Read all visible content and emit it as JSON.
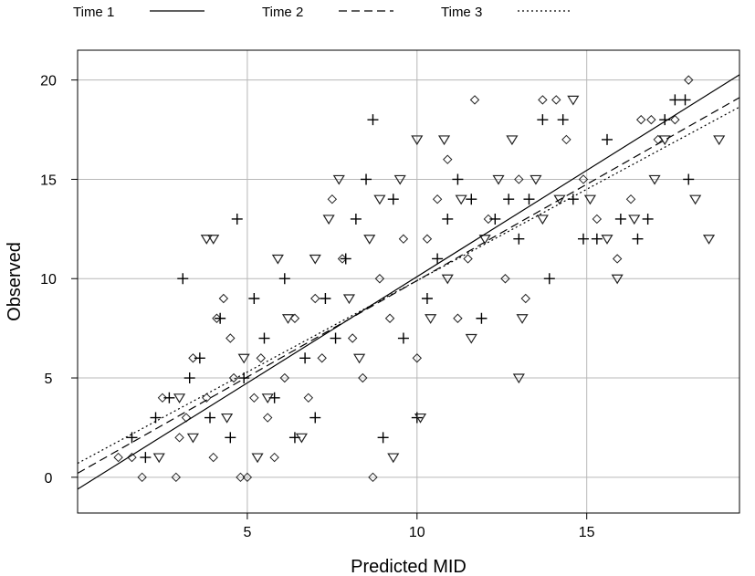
{
  "chart_data": {
    "type": "scatter",
    "xlabel": "Predicted MID",
    "ylabel": "Observed",
    "xlim": [
      0,
      19.5
    ],
    "ylim": [
      -1.8,
      21.5
    ],
    "x_ticks": [
      5,
      10,
      15
    ],
    "y_ticks": [
      0,
      5,
      10,
      15,
      20
    ],
    "grid": true,
    "legend_position": "top",
    "series": [
      {
        "name": "Time 1",
        "marker": "diamond",
        "line": "solid",
        "fit": {
          "intercept": -0.6,
          "slope": 1.07
        },
        "points": [
          [
            1.2,
            1
          ],
          [
            1.6,
            1
          ],
          [
            1.9,
            0
          ],
          [
            2.9,
            0
          ],
          [
            2.5,
            4
          ],
          [
            3.0,
            2
          ],
          [
            3.2,
            3
          ],
          [
            3.4,
            6
          ],
          [
            3.8,
            4
          ],
          [
            4.0,
            1
          ],
          [
            4.1,
            8
          ],
          [
            4.3,
            9
          ],
          [
            4.5,
            7
          ],
          [
            4.6,
            5
          ],
          [
            4.8,
            0
          ],
          [
            5.0,
            0
          ],
          [
            5.2,
            4
          ],
          [
            5.4,
            6
          ],
          [
            5.6,
            3
          ],
          [
            5.8,
            1
          ],
          [
            6.1,
            5
          ],
          [
            6.4,
            8
          ],
          [
            6.8,
            4
          ],
          [
            7.0,
            9
          ],
          [
            7.2,
            6
          ],
          [
            7.5,
            14
          ],
          [
            7.8,
            11
          ],
          [
            8.1,
            7
          ],
          [
            8.4,
            5
          ],
          [
            8.7,
            0
          ],
          [
            8.9,
            10
          ],
          [
            9.2,
            8
          ],
          [
            9.6,
            12
          ],
          [
            10.0,
            6
          ],
          [
            10.3,
            12
          ],
          [
            10.6,
            14
          ],
          [
            10.9,
            16
          ],
          [
            11.2,
            8
          ],
          [
            11.5,
            11
          ],
          [
            11.7,
            19
          ],
          [
            12.1,
            13
          ],
          [
            12.6,
            10
          ],
          [
            13.0,
            15
          ],
          [
            13.2,
            9
          ],
          [
            13.7,
            19
          ],
          [
            14.1,
            19
          ],
          [
            14.4,
            17
          ],
          [
            14.9,
            15
          ],
          [
            15.3,
            13
          ],
          [
            15.9,
            11
          ],
          [
            16.3,
            14
          ],
          [
            16.6,
            18
          ],
          [
            16.9,
            18
          ],
          [
            17.1,
            17
          ],
          [
            17.6,
            18
          ],
          [
            18.0,
            20
          ]
        ]
      },
      {
        "name": "Time 2",
        "marker": "plus",
        "line": "dashed",
        "fit": {
          "intercept": 0.2,
          "slope": 0.97
        },
        "points": [
          [
            1.6,
            2
          ],
          [
            2.0,
            1
          ],
          [
            2.3,
            3
          ],
          [
            2.7,
            4
          ],
          [
            3.1,
            10
          ],
          [
            3.3,
            5
          ],
          [
            3.6,
            6
          ],
          [
            3.9,
            3
          ],
          [
            4.2,
            8
          ],
          [
            4.5,
            2
          ],
          [
            4.7,
            13
          ],
          [
            4.9,
            5
          ],
          [
            5.2,
            9
          ],
          [
            5.5,
            7
          ],
          [
            5.8,
            4
          ],
          [
            6.1,
            10
          ],
          [
            6.4,
            2
          ],
          [
            6.7,
            6
          ],
          [
            7.0,
            3
          ],
          [
            7.3,
            9
          ],
          [
            7.6,
            7
          ],
          [
            7.9,
            11
          ],
          [
            8.2,
            13
          ],
          [
            8.5,
            15
          ],
          [
            8.7,
            18
          ],
          [
            9.0,
            2
          ],
          [
            9.3,
            14
          ],
          [
            9.6,
            7
          ],
          [
            10.0,
            3
          ],
          [
            10.3,
            9
          ],
          [
            10.6,
            11
          ],
          [
            10.9,
            13
          ],
          [
            11.2,
            15
          ],
          [
            11.6,
            14
          ],
          [
            11.9,
            8
          ],
          [
            12.3,
            13
          ],
          [
            12.7,
            14
          ],
          [
            13.0,
            12
          ],
          [
            13.3,
            14
          ],
          [
            13.7,
            18
          ],
          [
            13.9,
            10
          ],
          [
            14.3,
            18
          ],
          [
            14.6,
            14
          ],
          [
            14.9,
            12
          ],
          [
            15.3,
            12
          ],
          [
            15.6,
            17
          ],
          [
            16.0,
            13
          ],
          [
            16.5,
            12
          ],
          [
            16.8,
            13
          ],
          [
            17.3,
            18
          ],
          [
            17.6,
            19
          ],
          [
            18.0,
            15
          ],
          [
            17.9,
            19
          ]
        ]
      },
      {
        "name": "Time 3",
        "marker": "triangle-down",
        "line": "dotted",
        "fit": {
          "intercept": 0.7,
          "slope": 0.92
        },
        "points": [
          [
            2.4,
            1
          ],
          [
            3.0,
            4
          ],
          [
            3.4,
            2
          ],
          [
            3.8,
            12
          ],
          [
            4.0,
            12
          ],
          [
            4.4,
            3
          ],
          [
            4.9,
            6
          ],
          [
            5.3,
            1
          ],
          [
            5.6,
            4
          ],
          [
            5.9,
            11
          ],
          [
            6.2,
            8
          ],
          [
            6.6,
            2
          ],
          [
            7.0,
            11
          ],
          [
            7.4,
            13
          ],
          [
            7.7,
            15
          ],
          [
            8.0,
            9
          ],
          [
            8.3,
            6
          ],
          [
            8.6,
            12
          ],
          [
            8.9,
            14
          ],
          [
            9.3,
            1
          ],
          [
            9.5,
            15
          ],
          [
            10.0,
            17
          ],
          [
            10.1,
            3
          ],
          [
            10.4,
            8
          ],
          [
            10.8,
            17
          ],
          [
            10.9,
            10
          ],
          [
            11.3,
            14
          ],
          [
            11.6,
            7
          ],
          [
            12.0,
            12
          ],
          [
            12.4,
            15
          ],
          [
            12.8,
            17
          ],
          [
            13.0,
            5
          ],
          [
            13.1,
            8
          ],
          [
            13.5,
            15
          ],
          [
            13.7,
            13
          ],
          [
            14.2,
            14
          ],
          [
            14.6,
            19
          ],
          [
            15.1,
            14
          ],
          [
            15.6,
            12
          ],
          [
            15.9,
            10
          ],
          [
            16.4,
            13
          ],
          [
            17.0,
            15
          ],
          [
            17.3,
            17
          ],
          [
            18.2,
            14
          ],
          [
            18.6,
            12
          ],
          [
            18.9,
            17
          ]
        ]
      }
    ]
  }
}
